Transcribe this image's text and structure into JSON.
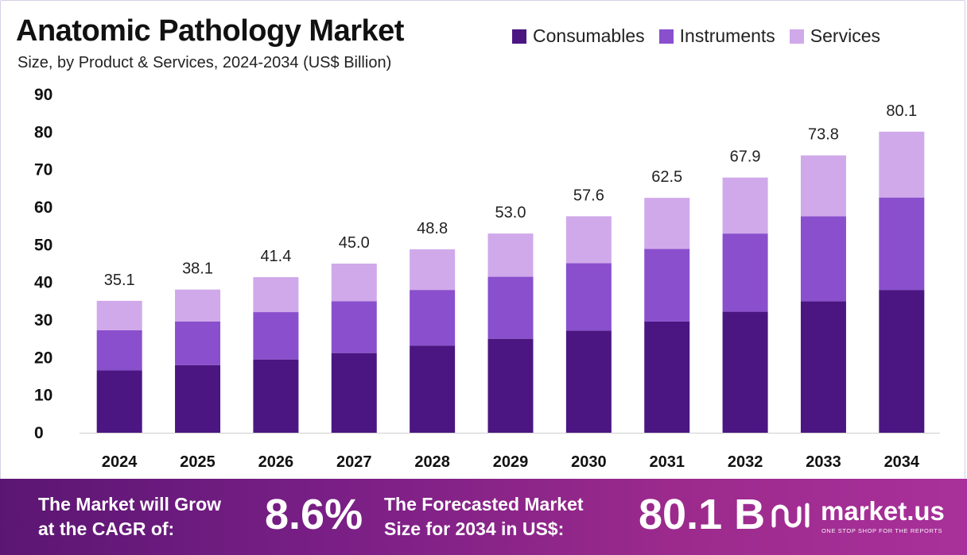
{
  "title": "Anatomic Pathology Market",
  "subtitle": "Size, by Product & Services, 2024-2034 (US$ Billion)",
  "colors": {
    "consumables": "#4b1682",
    "instruments": "#8a4fcd",
    "services": "#d0a9ea",
    "axis_line": "#cfcfcf"
  },
  "chart_data": {
    "type": "bar",
    "stacked": true,
    "categories": [
      "2024",
      "2025",
      "2026",
      "2027",
      "2028",
      "2029",
      "2030",
      "2031",
      "2032",
      "2033",
      "2034"
    ],
    "series": [
      {
        "name": "Consumables",
        "values": [
          16.6,
          18.0,
          19.5,
          21.2,
          23.2,
          25.0,
          27.2,
          29.6,
          32.2,
          35.0,
          38.0
        ]
      },
      {
        "name": "Instruments",
        "values": [
          10.7,
          11.6,
          12.6,
          13.8,
          14.8,
          16.5,
          17.9,
          19.3,
          20.8,
          22.6,
          24.6
        ]
      },
      {
        "name": "Services",
        "values": [
          7.8,
          8.5,
          9.3,
          10.0,
          10.8,
          11.5,
          12.5,
          13.6,
          14.9,
          16.2,
          17.5
        ]
      }
    ],
    "totals": [
      "35.1",
      "38.1",
      "41.4",
      "45.0",
      "48.8",
      "53.0",
      "57.6",
      "62.5",
      "67.9",
      "73.8",
      "80.1"
    ],
    "y_ticks": [
      0,
      10,
      20,
      30,
      40,
      50,
      60,
      70,
      80,
      90
    ],
    "ylim": [
      0,
      90
    ],
    "xlabel": "",
    "ylabel": "",
    "grid": false,
    "legend_position": "top-right"
  },
  "footer": {
    "cagr_line1": "The Market will Grow",
    "cagr_line2": "at the CAGR of:",
    "cagr_value": "8.6%",
    "forecast_line1": "The Forecasted Market",
    "forecast_line2": "Size for 2034 in US$:",
    "forecast_value": "80.1 B",
    "brand_name": "market.us",
    "brand_tagline": "ONE STOP SHOP FOR THE REPORTS",
    "brand_icon": "market-us-logo-icon"
  }
}
